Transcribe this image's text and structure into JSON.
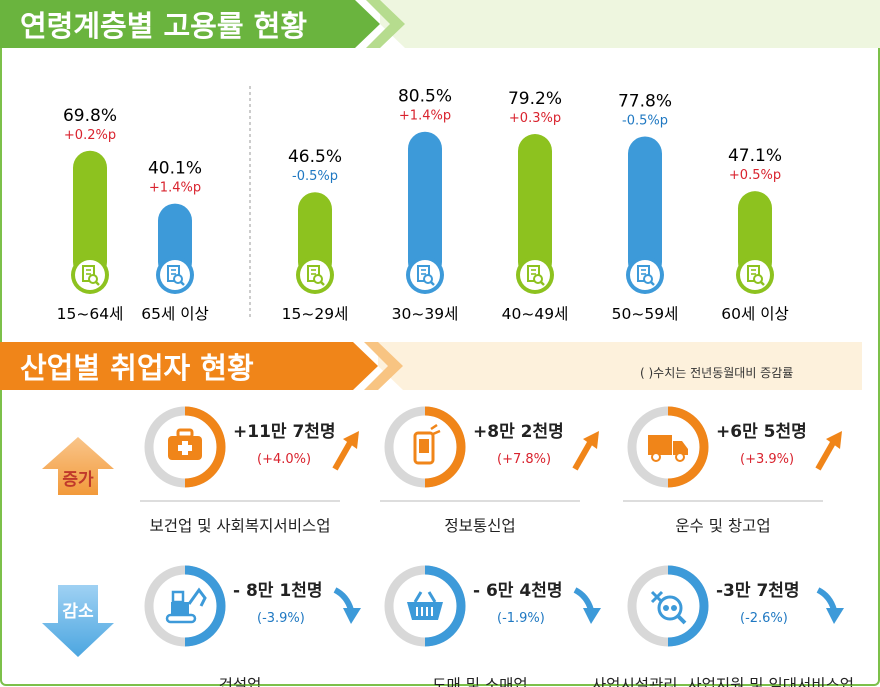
{
  "section1": {
    "title": "연령계층별 고용률 현황"
  },
  "section2": {
    "title": "산업별 취업자 현황",
    "note": "( )수치는 전년동월대비 증감률"
  },
  "labels": {
    "increase": "증가",
    "decrease": "감소"
  },
  "colors": {
    "green": "#8dc21f",
    "blue": "#3d9ad9",
    "orange": "#f08519",
    "red": "#d9232e",
    "chgBlue": "#1f78c2"
  },
  "chart_data": [
    {
      "type": "bar",
      "categories": [
        "15~64세",
        "65세 이상",
        "15~29세",
        "30~39세",
        "40~49세",
        "50~59세",
        "60세 이상"
      ],
      "values": [
        69.8,
        40.1,
        46.5,
        80.5,
        79.2,
        77.8,
        47.1
      ],
      "value_labels": [
        "69.8%",
        "40.1%",
        "46.5%",
        "80.5%",
        "79.2%",
        "77.8%",
        "47.1%"
      ],
      "changes": [
        "+0.2%p",
        "+1.4%p",
        "-0.5%p",
        "+1.4%p",
        "+0.3%p",
        "-0.5%p",
        "+0.5%p"
      ],
      "bar_colors": [
        "green",
        "blue",
        "green",
        "blue",
        "green",
        "blue",
        "green"
      ],
      "title": "연령계층별 고용률 현황"
    },
    {
      "type": "table",
      "title": "산업별 취업자 현황",
      "increase": [
        {
          "name": "보건업 및 사회복지서비스업",
          "value": "+11만 7천명",
          "change": "(+4.0%)",
          "icon": "first-aid-kit-icon"
        },
        {
          "name": "정보통신업",
          "value": "+8만 2천명",
          "change": "(+7.8%)",
          "icon": "mobile-phone-icon"
        },
        {
          "name": "운수 및 창고업",
          "value": "+6만 5천명",
          "change": "(+3.9%)",
          "icon": "delivery-truck-icon"
        }
      ],
      "decrease": [
        {
          "name": "건설업",
          "value": "- 8만 1천명",
          "change": "(-3.9%)",
          "icon": "excavator-icon"
        },
        {
          "name": "도매 및 소매업",
          "value": "- 6만 4천명",
          "change": "(-1.9%)",
          "icon": "shopping-basket-icon"
        },
        {
          "name": "사업시설관리, 사업지원 및 임대서비스업",
          "value": "-3만 7천명",
          "change": "(-2.6%)",
          "icon": "business-support-icon"
        }
      ]
    }
  ]
}
